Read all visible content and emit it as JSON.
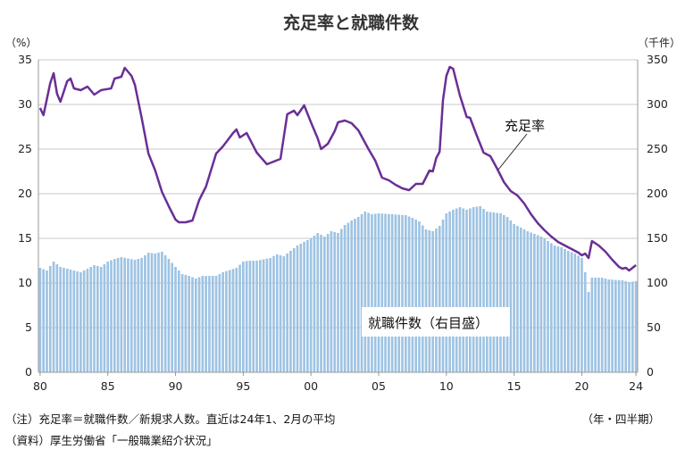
{
  "chart_data": {
    "type": "bar+line",
    "title": "充足率と就職件数",
    "y_left_unit": "（%）",
    "y_right_unit": "（千件）",
    "ylim_left": [
      0,
      35
    ],
    "ylim_right": [
      0,
      350
    ],
    "y_left_ticks": [
      "0",
      "5",
      "10",
      "15",
      "20",
      "25",
      "30",
      "35"
    ],
    "y_right_ticks": [
      "0",
      "50",
      "100",
      "150",
      "200",
      "250",
      "300",
      "350"
    ],
    "x_tick_labels": [
      "80",
      "85",
      "90",
      "95",
      "00",
      "05",
      "10",
      "15",
      "20",
      "24"
    ],
    "x_unit": "（年・四半期）",
    "grid": "horizontal",
    "x_start": "1980Q1",
    "series": [
      {
        "name": "充足率",
        "type": "line",
        "axis": "left",
        "color": "#6a2f96",
        "anchors": [
          [
            1980.0,
            29.6
          ],
          [
            1980.25,
            28.8
          ],
          [
            1980.75,
            32.4
          ],
          [
            1981.0,
            33.5
          ],
          [
            1981.25,
            31.2
          ],
          [
            1981.5,
            30.3
          ],
          [
            1982.0,
            32.6
          ],
          [
            1982.25,
            32.9
          ],
          [
            1982.5,
            31.8
          ],
          [
            1983.0,
            31.6
          ],
          [
            1983.5,
            32.0
          ],
          [
            1984.0,
            31.1
          ],
          [
            1984.5,
            31.6
          ],
          [
            1985.25,
            31.8
          ],
          [
            1985.5,
            32.9
          ],
          [
            1986.0,
            33.1
          ],
          [
            1986.25,
            34.1
          ],
          [
            1986.75,
            33.2
          ],
          [
            1987.0,
            32.2
          ],
          [
            1987.5,
            28.5
          ],
          [
            1988.0,
            24.5
          ],
          [
            1988.5,
            22.6
          ],
          [
            1989.0,
            20.2
          ],
          [
            1989.5,
            18.6
          ],
          [
            1990.0,
            17.1
          ],
          [
            1990.25,
            16.8
          ],
          [
            1990.75,
            16.8
          ],
          [
            1991.25,
            17.0
          ],
          [
            1991.75,
            19.3
          ],
          [
            1992.25,
            20.8
          ],
          [
            1993.0,
            24.5
          ],
          [
            1993.5,
            25.3
          ],
          [
            1994.25,
            26.8
          ],
          [
            1994.5,
            27.2
          ],
          [
            1994.75,
            26.3
          ],
          [
            1995.25,
            26.8
          ],
          [
            1996.0,
            24.6
          ],
          [
            1996.75,
            23.3
          ],
          [
            1997.25,
            23.6
          ],
          [
            1997.75,
            23.9
          ],
          [
            1998.25,
            28.9
          ],
          [
            1998.75,
            29.3
          ],
          [
            1999.0,
            28.8
          ],
          [
            1999.5,
            29.9
          ],
          [
            2000.0,
            28.0
          ],
          [
            2000.5,
            26.2
          ],
          [
            2000.75,
            25.0
          ],
          [
            2001.25,
            25.6
          ],
          [
            2001.75,
            27.0
          ],
          [
            2002.0,
            28.0
          ],
          [
            2002.5,
            28.2
          ],
          [
            2003.0,
            27.9
          ],
          [
            2003.5,
            27.1
          ],
          [
            2004.25,
            25.0
          ],
          [
            2004.75,
            23.7
          ],
          [
            2005.25,
            21.8
          ],
          [
            2005.75,
            21.5
          ],
          [
            2006.25,
            21.0
          ],
          [
            2006.75,
            20.6
          ],
          [
            2007.25,
            20.4
          ],
          [
            2007.75,
            21.1
          ],
          [
            2008.25,
            21.1
          ],
          [
            2008.75,
            22.6
          ],
          [
            2009.0,
            22.5
          ],
          [
            2009.25,
            24.0
          ],
          [
            2009.5,
            24.7
          ],
          [
            2009.75,
            30.5
          ],
          [
            2010.0,
            33.2
          ],
          [
            2010.25,
            34.2
          ],
          [
            2010.5,
            34.0
          ],
          [
            2011.0,
            31.0
          ],
          [
            2011.5,
            28.6
          ],
          [
            2011.75,
            28.5
          ],
          [
            2012.25,
            26.5
          ],
          [
            2012.75,
            24.6
          ],
          [
            2013.25,
            24.2
          ],
          [
            2013.75,
            22.8
          ],
          [
            2014.25,
            21.3
          ],
          [
            2014.75,
            20.3
          ],
          [
            2015.25,
            19.8
          ],
          [
            2015.75,
            18.9
          ],
          [
            2016.25,
            17.7
          ],
          [
            2016.75,
            16.7
          ],
          [
            2017.25,
            15.9
          ],
          [
            2017.75,
            15.2
          ],
          [
            2018.25,
            14.6
          ],
          [
            2018.75,
            14.2
          ],
          [
            2019.25,
            13.8
          ],
          [
            2019.75,
            13.4
          ],
          [
            2020.0,
            13.1
          ],
          [
            2020.25,
            13.3
          ],
          [
            2020.5,
            12.8
          ],
          [
            2020.75,
            14.7
          ],
          [
            2021.25,
            14.2
          ],
          [
            2021.75,
            13.5
          ],
          [
            2022.25,
            12.6
          ],
          [
            2022.75,
            11.8
          ],
          [
            2023.0,
            11.6
          ],
          [
            2023.25,
            11.7
          ],
          [
            2023.5,
            11.4
          ],
          [
            2023.75,
            11.7
          ],
          [
            2024.0,
            12.0
          ]
        ]
      },
      {
        "name": "就職件数（右目盛）",
        "type": "bar",
        "axis": "right",
        "color": "#9ec3e3",
        "anchors": [
          [
            1980.0,
            117
          ],
          [
            1980.5,
            114
          ],
          [
            1981.0,
            124
          ],
          [
            1981.5,
            118
          ],
          [
            1982.0,
            116
          ],
          [
            1983.0,
            112
          ],
          [
            1983.5,
            116
          ],
          [
            1984.0,
            120
          ],
          [
            1984.5,
            118
          ],
          [
            1985.0,
            124
          ],
          [
            1985.5,
            127
          ],
          [
            1986.0,
            129
          ],
          [
            1987.0,
            126
          ],
          [
            1987.5,
            128
          ],
          [
            1988.0,
            134
          ],
          [
            1988.5,
            133
          ],
          [
            1989.0,
            135
          ],
          [
            1989.5,
            127
          ],
          [
            1990.0,
            118
          ],
          [
            1990.5,
            110
          ],
          [
            1991.0,
            108
          ],
          [
            1991.5,
            105
          ],
          [
            1992.0,
            108
          ],
          [
            1993.0,
            108
          ],
          [
            1993.5,
            112
          ],
          [
            1994.5,
            117
          ],
          [
            1995.0,
            124
          ],
          [
            1995.5,
            125
          ],
          [
            1996.0,
            125
          ],
          [
            1997.0,
            128
          ],
          [
            1997.5,
            132
          ],
          [
            1998.0,
            130
          ],
          [
            1998.5,
            136
          ],
          [
            1999.0,
            142
          ],
          [
            1999.5,
            146
          ],
          [
            2000.0,
            150
          ],
          [
            2000.5,
            156
          ],
          [
            2001.0,
            152
          ],
          [
            2001.5,
            158
          ],
          [
            2002.0,
            156
          ],
          [
            2002.5,
            165
          ],
          [
            2003.0,
            170
          ],
          [
            2003.5,
            174
          ],
          [
            2004.0,
            180
          ],
          [
            2004.5,
            177
          ],
          [
            2005.0,
            178
          ],
          [
            2006.0,
            177
          ],
          [
            2007.0,
            176
          ],
          [
            2007.5,
            173
          ],
          [
            2008.0,
            169
          ],
          [
            2008.5,
            160
          ],
          [
            2009.0,
            158
          ],
          [
            2009.5,
            164
          ],
          [
            2010.0,
            178
          ],
          [
            2010.5,
            182
          ],
          [
            2011.0,
            185
          ],
          [
            2011.5,
            182
          ],
          [
            2012.0,
            185
          ],
          [
            2012.5,
            186
          ],
          [
            2013.0,
            180
          ],
          [
            2014.0,
            178
          ],
          [
            2014.5,
            174
          ],
          [
            2015.0,
            166
          ],
          [
            2015.5,
            162
          ],
          [
            2016.0,
            158
          ],
          [
            2017.0,
            152
          ],
          [
            2018.0,
            142
          ],
          [
            2018.5,
            140
          ],
          [
            2019.0,
            136
          ],
          [
            2019.5,
            133
          ],
          [
            2020.0,
            128
          ],
          [
            2020.25,
            112
          ],
          [
            2020.5,
            90
          ],
          [
            2020.75,
            106
          ],
          [
            2021.5,
            106
          ],
          [
            2022.0,
            104
          ],
          [
            2023.0,
            103
          ],
          [
            2023.5,
            101
          ],
          [
            2024.0,
            102
          ]
        ]
      }
    ],
    "annotations": [
      "充足率",
      "就職件数（右目盛）"
    ]
  },
  "notes": {
    "note1": "（注）充足率＝就職件数／新規求人数。直近は24年1、2月の平均",
    "note2": "（資料）厚生労働省「一般職業紹介状況」"
  }
}
